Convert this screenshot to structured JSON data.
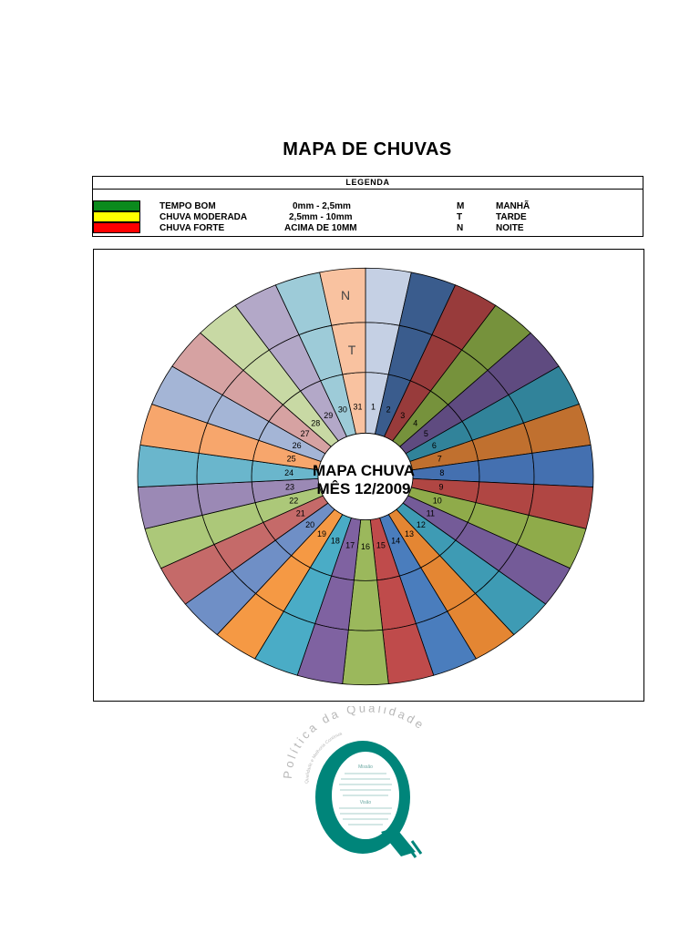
{
  "document": {
    "title": "MAPA DE CHUVAS"
  },
  "legend": {
    "header": "LEGENDA",
    "rows": [
      {
        "label": "TEMPO BOM",
        "range": "0mm - 2,5mm",
        "code": "M",
        "period": "MANHÃ",
        "color": "#0b8a1d"
      },
      {
        "label": "CHUVA MODERADA",
        "range": "2,5mm - 10mm",
        "code": "T",
        "period": "TARDE",
        "color": "#ffff00"
      },
      {
        "label": "CHUVA FORTE",
        "range": "ACIMA DE 10MM",
        "code": "N",
        "period": "NOITE",
        "color": "#ff0000"
      }
    ]
  },
  "chart": {
    "center_line1": "MAPA CHUVA",
    "center_line2": "MÊS 12/2009",
    "ring_labels": {
      "afternoon": "T",
      "night": "N"
    },
    "day_order": [
      "1",
      "2",
      "3",
      "4",
      "5",
      "6",
      "7",
      "8",
      "9",
      "10",
      "11",
      "12",
      "13",
      "14",
      "15",
      "16",
      "17",
      "18",
      "19",
      "20",
      "21",
      "22",
      "23",
      "24",
      "25",
      "26",
      "27",
      "28",
      "29",
      "30",
      "31"
    ],
    "colors": [
      "#c5d0e4",
      "#3a5c8d",
      "#983b3b",
      "#76923c",
      "#5f4b80",
      "#31839a",
      "#c0702f",
      "#4470b0",
      "#b04643",
      "#8fab4a",
      "#745b98",
      "#3e9bb4",
      "#e48633",
      "#4a7dbd",
      "#bf4b4b",
      "#9bb85c",
      "#7f62a1",
      "#4aacc6",
      "#f59944",
      "#6f8fc6",
      "#c56a69",
      "#acc879",
      "#9b89b5",
      "#6ab6cc",
      "#f7a66c",
      "#a4b5d6",
      "#d6a2a2",
      "#c8d9a4",
      "#b3a8c8",
      "#9dcbd8",
      "#f9c2a0"
    ]
  },
  "logo": {
    "arc_text": "Política da Qualidade",
    "sub_text": "Qualidade e Melhoria Contínua",
    "missao": "Missão",
    "visao": "Visão"
  }
}
